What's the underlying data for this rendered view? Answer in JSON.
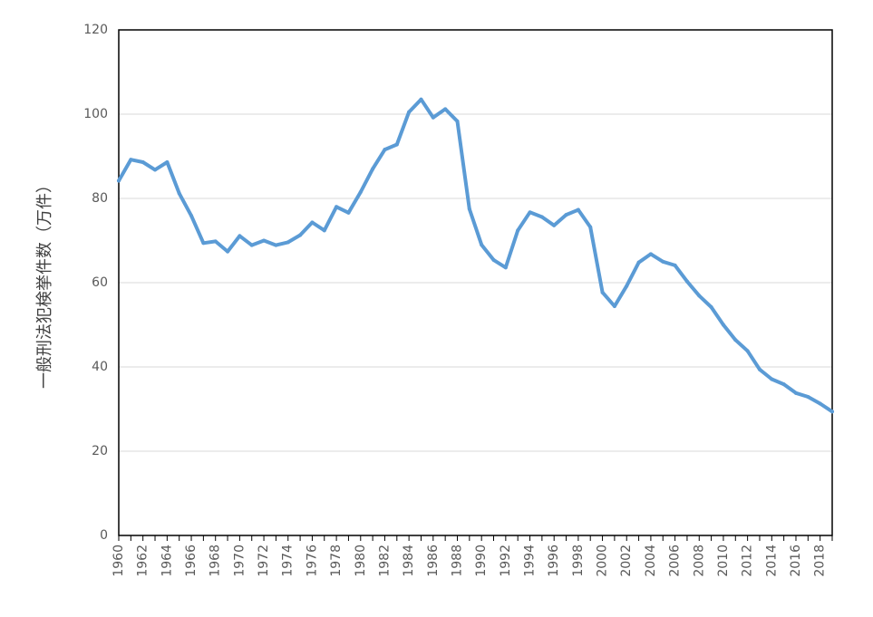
{
  "chart_data": {
    "type": "line",
    "title": "",
    "xlabel": "",
    "ylabel": "一般刑法犯検挙件数（万件）",
    "ylim": [
      0,
      120
    ],
    "yticks": [
      0,
      20,
      40,
      60,
      80,
      100,
      120
    ],
    "grid": true,
    "legend": "none",
    "x_tick_labels": [
      "1960",
      "1962",
      "1964",
      "1966",
      "1968",
      "1970",
      "1972",
      "1974",
      "1976",
      "1978",
      "1980",
      "1982",
      "1984",
      "1986",
      "1988",
      "1990",
      "1992",
      "1994",
      "1996",
      "1998",
      "2000",
      "2002",
      "2004",
      "2006",
      "2008",
      "2010",
      "2012",
      "2014",
      "2016",
      "2018"
    ],
    "series": [
      {
        "color": "#5b9bd5",
        "x": [
          1960,
          1961,
          1962,
          1963,
          1964,
          1965,
          1966,
          1967,
          1968,
          1969,
          1970,
          1971,
          1972,
          1973,
          1974,
          1975,
          1976,
          1977,
          1978,
          1979,
          1980,
          1981,
          1982,
          1983,
          1984,
          1985,
          1986,
          1987,
          1988,
          1989,
          1990,
          1991,
          1992,
          1993,
          1994,
          1995,
          1996,
          1997,
          1998,
          1999,
          2000,
          2001,
          2002,
          2003,
          2004,
          2005,
          2006,
          2007,
          2008,
          2009,
          2010,
          2011,
          2012,
          2013,
          2014,
          2015,
          2016,
          2017,
          2018,
          2019
        ],
        "values": [
          84.2,
          89.2,
          88.6,
          86.8,
          88.6,
          81.2,
          75.9,
          69.4,
          69.8,
          67.4,
          71.1,
          68.9,
          70.0,
          68.9,
          69.6,
          71.3,
          74.3,
          72.4,
          78.0,
          76.6,
          81.5,
          87.0,
          91.6,
          92.8,
          100.5,
          103.5,
          99.2,
          101.2,
          98.3,
          77.5,
          69.0,
          65.4,
          63.6,
          72.4,
          76.7,
          75.6,
          73.6,
          76.1,
          77.3,
          73.2,
          57.7,
          54.4,
          59.2,
          64.8,
          66.8,
          65.0,
          64.1,
          60.3,
          56.9,
          54.2,
          50.0,
          46.4,
          43.8,
          39.4,
          37.1,
          35.9,
          33.8,
          32.9,
          31.3,
          29.4
        ]
      }
    ]
  }
}
